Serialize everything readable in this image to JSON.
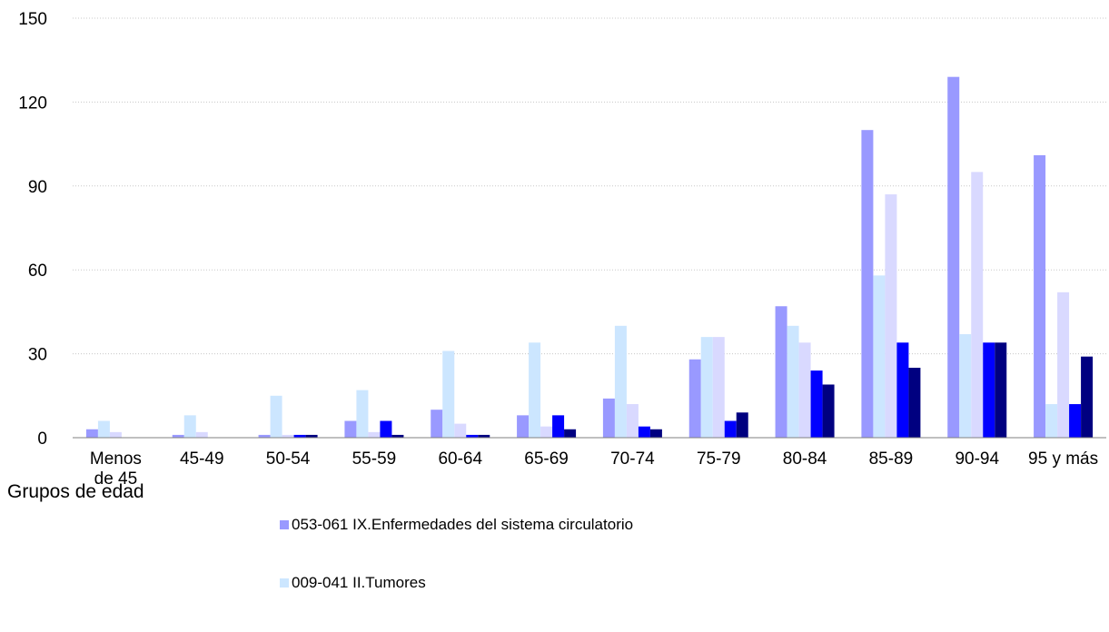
{
  "chart_data": {
    "type": "bar",
    "xlabel": "Grupos de edad",
    "ylabel": "",
    "ylim": [
      0,
      150
    ],
    "yticks": [
      0,
      30,
      60,
      90,
      120,
      150
    ],
    "grid": true,
    "legend_position": "bottom",
    "categories": [
      "Menos de 45",
      "45-49",
      "50-54",
      "55-59",
      "60-64",
      "65-69",
      "70-74",
      "75-79",
      "80-84",
      "85-89",
      "90-94",
      "95 y más"
    ],
    "category_lines": [
      [
        "Menos",
        "de 45"
      ],
      [
        "45-49"
      ],
      [
        "50-54"
      ],
      [
        "55-59"
      ],
      [
        "60-64"
      ],
      [
        "65-69"
      ],
      [
        "70-74"
      ],
      [
        "75-79"
      ],
      [
        "80-84"
      ],
      [
        "85-89"
      ],
      [
        "90-94"
      ],
      [
        "95 y más"
      ]
    ],
    "series": [
      {
        "name": "053-061 IX.Enfermedades del sistema circulatorio",
        "color": "#9999ff",
        "values": [
          3,
          1,
          1,
          6,
          10,
          8,
          14,
          28,
          47,
          110,
          129,
          101
        ]
      },
      {
        "name": "009-041 II.Tumores",
        "color": "#cce6ff",
        "values": [
          6,
          8,
          15,
          17,
          31,
          34,
          40,
          36,
          40,
          58,
          37,
          12
        ]
      },
      {
        "color": "#d9d9ff",
        "values": [
          2,
          2,
          1,
          2,
          5,
          4,
          12,
          36,
          34,
          87,
          95,
          52
        ]
      },
      {
        "color": "#0000ff",
        "values": [
          0,
          0,
          1,
          6,
          1,
          8,
          4,
          6,
          24,
          34,
          34,
          12
        ]
      },
      {
        "color": "#000080",
        "values": [
          0,
          0,
          1,
          1,
          1,
          3,
          3,
          9,
          19,
          25,
          34,
          29
        ]
      }
    ]
  }
}
